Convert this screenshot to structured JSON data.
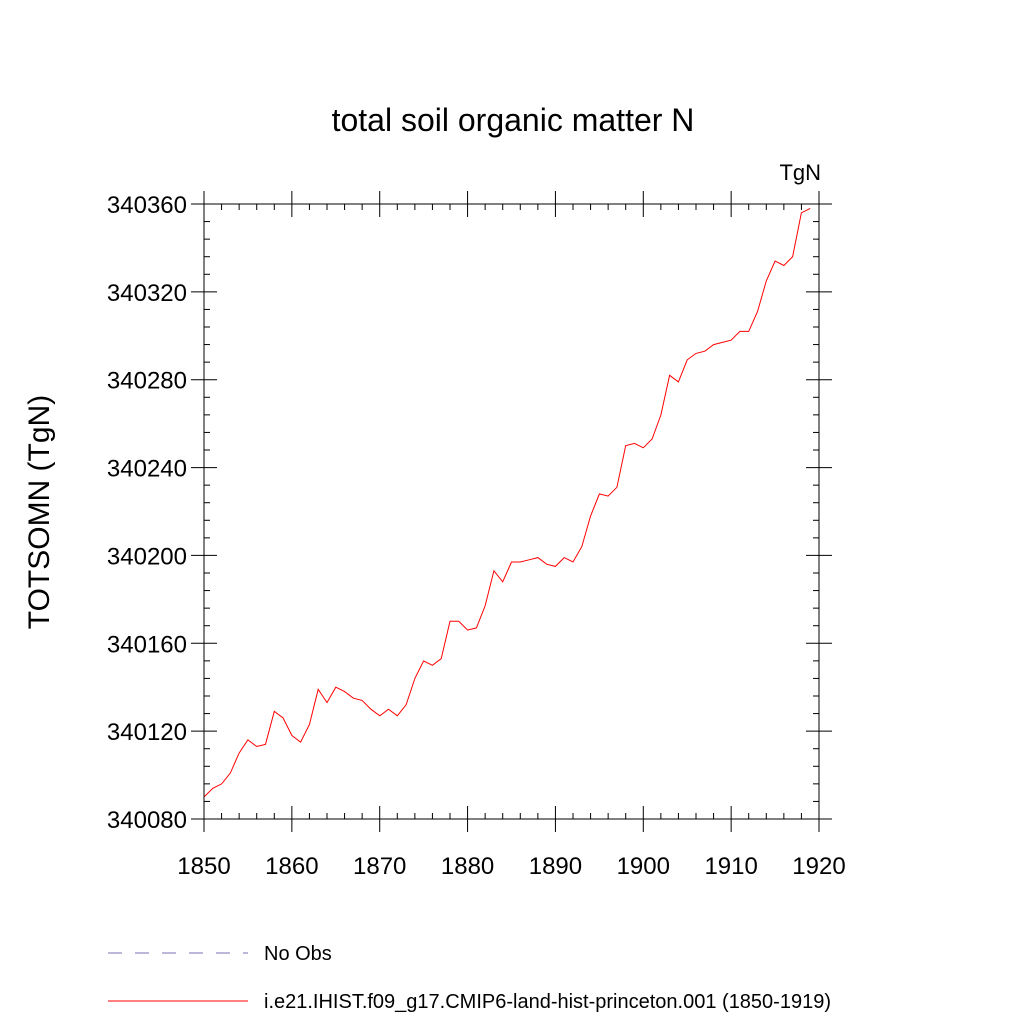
{
  "chart_data": {
    "type": "line",
    "title": "total soil organic matter N",
    "units_label": "TgN",
    "xlabel": "",
    "ylabel": "TOTSOMN  (TgN)",
    "xlim": [
      1850,
      1920
    ],
    "ylim": [
      340080,
      340360
    ],
    "x_ticks": [
      1850,
      1860,
      1870,
      1880,
      1890,
      1900,
      1910,
      1920
    ],
    "y_ticks": [
      340080,
      340120,
      340160,
      340200,
      340240,
      340280,
      340320,
      340360
    ],
    "x_minor_step": 2,
    "y_minor_step": 8,
    "grid": false,
    "legend_position": "bottom",
    "legend": [
      {
        "name": "No Obs",
        "color": "#7b6fb3",
        "style": "dashed"
      },
      {
        "name": "i.e21.IHIST.f09_g17.CMIP6-land-hist-princeton.001 (1850-1919)",
        "color": "#ff0000",
        "style": "solid"
      }
    ],
    "series": [
      {
        "name": "i.e21.IHIST.f09_g17.CMIP6-land-hist-princeton.001 (1850-1919)",
        "color": "#ff0000",
        "x": [
          1850,
          1851,
          1852,
          1853,
          1854,
          1855,
          1856,
          1857,
          1858,
          1859,
          1860,
          1861,
          1862,
          1863,
          1864,
          1865,
          1866,
          1867,
          1868,
          1869,
          1870,
          1871,
          1872,
          1873,
          1874,
          1875,
          1876,
          1877,
          1878,
          1879,
          1880,
          1881,
          1882,
          1883,
          1884,
          1885,
          1886,
          1887,
          1888,
          1889,
          1890,
          1891,
          1892,
          1893,
          1894,
          1895,
          1896,
          1897,
          1898,
          1899,
          1900,
          1901,
          1902,
          1903,
          1904,
          1905,
          1906,
          1907,
          1908,
          1909,
          1910,
          1911,
          1912,
          1913,
          1914,
          1915,
          1916,
          1917,
          1918,
          1919
        ],
        "values": [
          340090,
          340094,
          340096,
          340101,
          340110,
          340116,
          340113,
          340114,
          340129,
          340126,
          340118,
          340115,
          340123,
          340139,
          340133,
          340140,
          340138,
          340135,
          340134,
          340130,
          340127,
          340130,
          340127,
          340132,
          340144,
          340152,
          340150,
          340153,
          340170,
          340170,
          340166,
          340167,
          340177,
          340193,
          340188,
          340197,
          340197,
          340198,
          340199,
          340196,
          340195,
          340199,
          340197,
          340204,
          340218,
          340228,
          340227,
          340231,
          340250,
          340251,
          340249,
          340253,
          340264,
          340282,
          340279,
          340289,
          340292,
          340293,
          340296,
          340297,
          340298,
          340302,
          340302,
          340311,
          340325,
          340334,
          340332,
          340336,
          340356,
          340358
        ]
      }
    ]
  }
}
